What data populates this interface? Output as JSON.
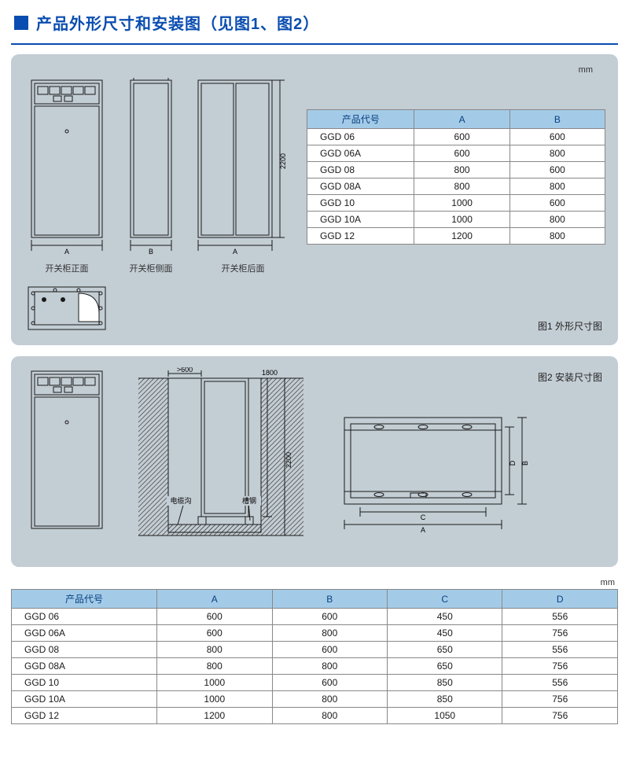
{
  "header": {
    "title": "产品外形尺寸和安装图（见图1、图2）"
  },
  "unit_label": "mm",
  "figure1": {
    "label": "图1 外形尺寸图",
    "front_label": "开关柜正面",
    "side_label": "开关柜侧面",
    "back_label": "开关柜后面",
    "dim_A": "A",
    "dim_B": "B",
    "dim_H": "2200"
  },
  "figure2": {
    "label": "图2 安装尺寸图",
    "dim_600": ">600",
    "dim_1800": "1800",
    "dim_2200": "2200",
    "cable_trench": "电缆沟",
    "channel_steel": "槽钢",
    "dim_A": "A",
    "dim_B": "B",
    "dim_C": "C",
    "dim_D": "D"
  },
  "table1": {
    "columns": [
      "产品代号",
      "A",
      "B"
    ],
    "rows": [
      [
        "GGD 06",
        "600",
        "600"
      ],
      [
        "GGD 06A",
        "600",
        "800"
      ],
      [
        "GGD 08",
        "800",
        "600"
      ],
      [
        "GGD 08A",
        "800",
        "800"
      ],
      [
        "GGD 10",
        "1000",
        "600"
      ],
      [
        "GGD 10A",
        "1000",
        "800"
      ],
      [
        "GGD 12",
        "1200",
        "800"
      ]
    ],
    "col_widths": [
      "36%",
      "32%",
      "32%"
    ]
  },
  "table2": {
    "columns": [
      "产品代号",
      "A",
      "B",
      "C",
      "D"
    ],
    "rows": [
      [
        "GGD 06",
        "600",
        "600",
        "450",
        "556"
      ],
      [
        "GGD 06A",
        "600",
        "800",
        "450",
        "756"
      ],
      [
        "GGD 08",
        "800",
        "600",
        "650",
        "556"
      ],
      [
        "GGD 08A",
        "800",
        "800",
        "650",
        "756"
      ],
      [
        "GGD 10",
        "1000",
        "600",
        "850",
        "556"
      ],
      [
        "GGD 10A",
        "1000",
        "800",
        "850",
        "756"
      ],
      [
        "GGD 12",
        "1200",
        "800",
        "1050",
        "756"
      ]
    ],
    "col_widths": [
      "24%",
      "19%",
      "19%",
      "19%",
      "19%"
    ]
  },
  "colors": {
    "accent": "#0a4db0",
    "panel_bg": "#c3cdd4",
    "th_bg": "#a3cbe8",
    "th_fg": "#0a4080",
    "border": "#888888",
    "stroke": "#1a1a1a",
    "dim_stroke": "#333333"
  },
  "svg": {
    "stroke_width": 1,
    "font_size_dim": 9
  }
}
